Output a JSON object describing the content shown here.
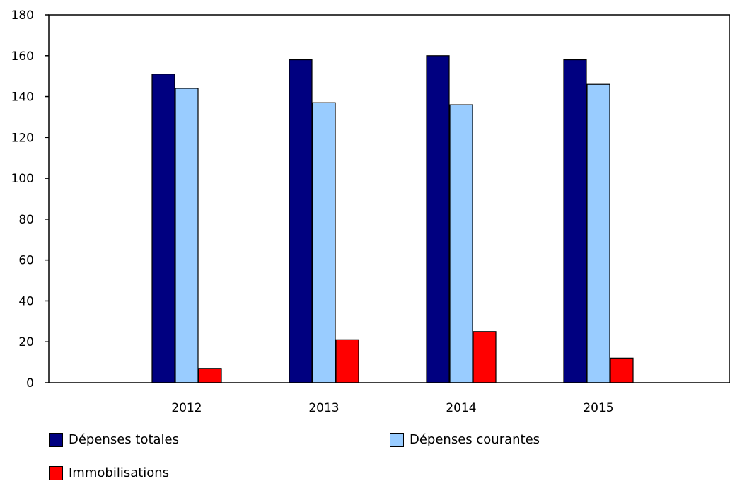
{
  "chart_data": {
    "type": "bar",
    "categories": [
      "2012",
      "2013",
      "2014",
      "2015"
    ],
    "series": [
      {
        "name": "Dépenses totales",
        "values": [
          151,
          158,
          160,
          158
        ],
        "color": "#000080"
      },
      {
        "name": "Dépenses courantes",
        "values": [
          144,
          137,
          136,
          146
        ],
        "color": "#99ccff"
      },
      {
        "name": "Immobilisations",
        "values": [
          7,
          21,
          25,
          12
        ],
        "color": "#ff0000"
      }
    ],
    "yticks": [
      "0",
      "20",
      "40",
      "60",
      "80",
      "100",
      "120",
      "140",
      "160",
      "180"
    ],
    "ylim": [
      0,
      180
    ],
    "grid": false,
    "legend_position": "bottom"
  }
}
